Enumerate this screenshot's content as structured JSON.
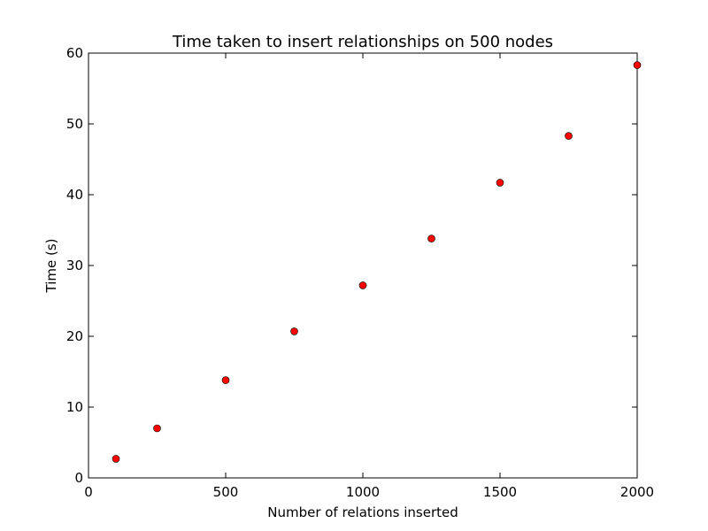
{
  "chart_data": {
    "type": "scatter",
    "title": "Time taken to insert relationships on 500 nodes",
    "xlabel": "Number of relations inserted",
    "ylabel": "Time (s)",
    "xlim": [
      0,
      2000
    ],
    "ylim": [
      0,
      60
    ],
    "xticks": [
      0,
      500,
      1000,
      1500,
      2000
    ],
    "yticks": [
      0,
      10,
      20,
      30,
      40,
      50,
      60
    ],
    "grid": false,
    "marker_color": "#ff0000",
    "series": [
      {
        "x": [
          100,
          250,
          500,
          750,
          1000,
          1250,
          1500,
          1750,
          2000
        ],
        "y": [
          2.7,
          7.0,
          13.8,
          20.7,
          27.2,
          33.8,
          41.7,
          48.3,
          58.3
        ]
      }
    ]
  }
}
